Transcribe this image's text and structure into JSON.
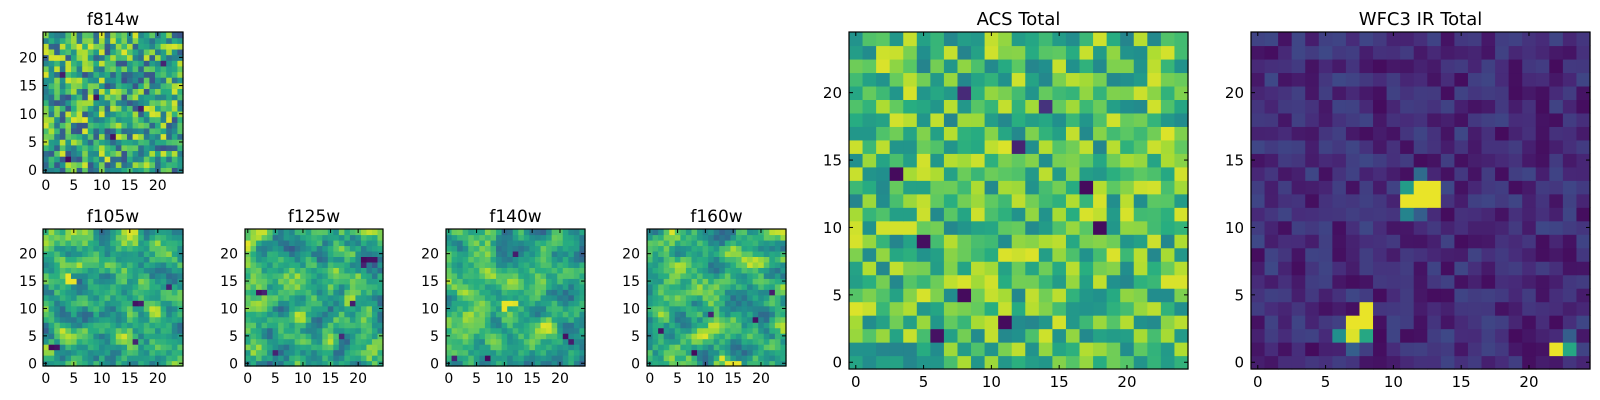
{
  "chart_data": [
    {
      "type": "heatmap",
      "title": "f814w",
      "grid_size": 25,
      "xlim": [
        0,
        25
      ],
      "ylim": [
        0,
        25
      ],
      "xticks": [
        "0",
        "5",
        "10",
        "15",
        "20"
      ],
      "yticks": [
        "0",
        "5",
        "10",
        "15",
        "20"
      ],
      "colormap": "viridis",
      "texture": "uniform-noise",
      "seed": 11,
      "low": 0.25,
      "high": 0.95,
      "cells": [
        [
          4,
          2,
          0.03
        ],
        [
          12,
          6,
          0.05
        ],
        [
          9,
          13,
          0.05
        ],
        [
          17,
          11,
          0.08
        ],
        [
          21,
          19,
          0.1
        ],
        [
          3,
          17,
          0.08
        ],
        [
          14,
          21,
          0.95
        ],
        [
          7,
          9,
          0.97
        ]
      ]
    },
    {
      "type": "heatmap",
      "title": "f105w",
      "grid_size": 25,
      "xlim": [
        0,
        25
      ],
      "ylim": [
        0,
        25
      ],
      "xticks": [
        "0",
        "5",
        "10",
        "15",
        "20"
      ],
      "yticks": [
        "0",
        "5",
        "10",
        "15",
        "20"
      ],
      "colormap": "viridis",
      "texture": "smooth-noise",
      "seed": 23,
      "low": 0.3,
      "high": 0.95,
      "cells": [
        [
          4,
          15,
          0.97
        ],
        [
          5,
          15,
          0.97
        ],
        [
          4,
          16,
          0.97
        ],
        [
          1,
          3,
          0.03
        ],
        [
          2,
          3,
          0.05
        ],
        [
          16,
          11,
          0.05
        ],
        [
          17,
          11,
          0.08
        ],
        [
          16,
          4,
          0.1
        ],
        [
          22,
          14,
          0.1
        ]
      ]
    },
    {
      "type": "heatmap",
      "title": "f125w",
      "grid_size": 25,
      "xlim": [
        0,
        25
      ],
      "ylim": [
        0,
        25
      ],
      "xticks": [
        "0",
        "5",
        "10",
        "15",
        "20"
      ],
      "yticks": [
        "0",
        "5",
        "10",
        "15",
        "20"
      ],
      "colormap": "viridis",
      "texture": "smooth-noise",
      "seed": 37,
      "low": 0.28,
      "high": 0.96,
      "cells": [
        [
          21,
          19,
          0.03
        ],
        [
          22,
          19,
          0.05
        ],
        [
          23,
          19,
          0.05
        ],
        [
          21,
          18,
          0.1
        ],
        [
          2,
          13,
          0.05
        ],
        [
          3,
          13,
          0.1
        ],
        [
          19,
          11,
          0.08
        ],
        [
          5,
          2,
          0.1
        ],
        [
          17,
          5,
          0.12
        ]
      ]
    },
    {
      "type": "heatmap",
      "title": "f140w",
      "grid_size": 25,
      "xlim": [
        0,
        25
      ],
      "ylim": [
        0,
        25
      ],
      "xticks": [
        "0",
        "5",
        "10",
        "15",
        "20"
      ],
      "yticks": [
        "0",
        "5",
        "10",
        "15",
        "20"
      ],
      "colormap": "viridis",
      "texture": "smooth-noise",
      "seed": 53,
      "low": 0.3,
      "high": 0.95,
      "cells": [
        [
          7,
          1,
          0.03
        ],
        [
          21,
          5,
          0.05
        ],
        [
          22,
          4,
          0.08
        ],
        [
          12,
          20,
          0.08
        ],
        [
          1,
          1,
          0.1
        ],
        [
          10,
          11,
          0.97
        ],
        [
          11,
          11,
          0.97
        ],
        [
          12,
          11,
          0.95
        ],
        [
          10,
          10,
          0.97
        ]
      ]
    },
    {
      "type": "heatmap",
      "title": "f160w",
      "grid_size": 25,
      "xlim": [
        0,
        25
      ],
      "ylim": [
        0,
        25
      ],
      "xticks": [
        "0",
        "5",
        "10",
        "15",
        "20"
      ],
      "yticks": [
        "0",
        "5",
        "10",
        "15",
        "20"
      ],
      "colormap": "viridis",
      "texture": "smooth-noise",
      "seed": 71,
      "low": 0.3,
      "high": 0.95,
      "cells": [
        [
          8,
          2,
          0.03
        ],
        [
          2,
          6,
          0.05
        ],
        [
          19,
          8,
          0.05
        ],
        [
          22,
          13,
          0.08
        ],
        [
          14,
          0,
          0.97
        ],
        [
          15,
          0,
          0.97
        ],
        [
          16,
          0,
          0.97
        ],
        [
          13,
          1,
          0.95
        ],
        [
          11,
          9,
          0.1
        ]
      ]
    },
    {
      "type": "heatmap",
      "title": "ACS Total",
      "grid_size": 25,
      "xlim": [
        0,
        25
      ],
      "ylim": [
        0,
        25
      ],
      "xticks": [
        "0",
        "5",
        "10",
        "15",
        "20"
      ],
      "yticks": [
        "0",
        "5",
        "10",
        "15",
        "20"
      ],
      "colormap": "viridis",
      "texture": "uniform-noise",
      "seed": 97,
      "low": 0.45,
      "high": 0.95,
      "cells": [
        [
          3,
          14,
          0.03
        ],
        [
          17,
          13,
          0.03
        ],
        [
          18,
          10,
          0.03
        ],
        [
          5,
          9,
          0.04
        ],
        [
          8,
          5,
          0.03
        ],
        [
          11,
          3,
          0.03
        ],
        [
          6,
          2,
          0.05
        ],
        [
          8,
          20,
          0.12
        ],
        [
          12,
          16,
          0.1
        ],
        [
          14,
          19,
          0.15
        ]
      ]
    },
    {
      "type": "heatmap",
      "title": "WFC3 IR Total",
      "grid_size": 25,
      "xlim": [
        0,
        25
      ],
      "ylim": [
        0,
        25
      ],
      "xticks": [
        "0",
        "5",
        "10",
        "15",
        "20"
      ],
      "yticks": [
        "0",
        "5",
        "10",
        "15",
        "20"
      ],
      "colormap": "viridis",
      "texture": "dark-noise",
      "seed": 131,
      "low": 0.03,
      "high": 0.22,
      "cells": [
        [
          11,
          12,
          0.97
        ],
        [
          12,
          12,
          0.97
        ],
        [
          13,
          12,
          0.97
        ],
        [
          11,
          13,
          0.55
        ],
        [
          12,
          13,
          0.97
        ],
        [
          13,
          13,
          0.97
        ],
        [
          12,
          14,
          0.35
        ],
        [
          11,
          11,
          0.45
        ],
        [
          12,
          11,
          0.3
        ],
        [
          8,
          4,
          0.97
        ],
        [
          7,
          3,
          0.97
        ],
        [
          8,
          3,
          0.97
        ],
        [
          7,
          2,
          0.95
        ],
        [
          6,
          2,
          0.5
        ],
        [
          8,
          2,
          0.6
        ],
        [
          7,
          1,
          0.3
        ],
        [
          22,
          1,
          0.97
        ],
        [
          23,
          1,
          0.6
        ],
        [
          23,
          2,
          0.3
        ]
      ]
    }
  ]
}
